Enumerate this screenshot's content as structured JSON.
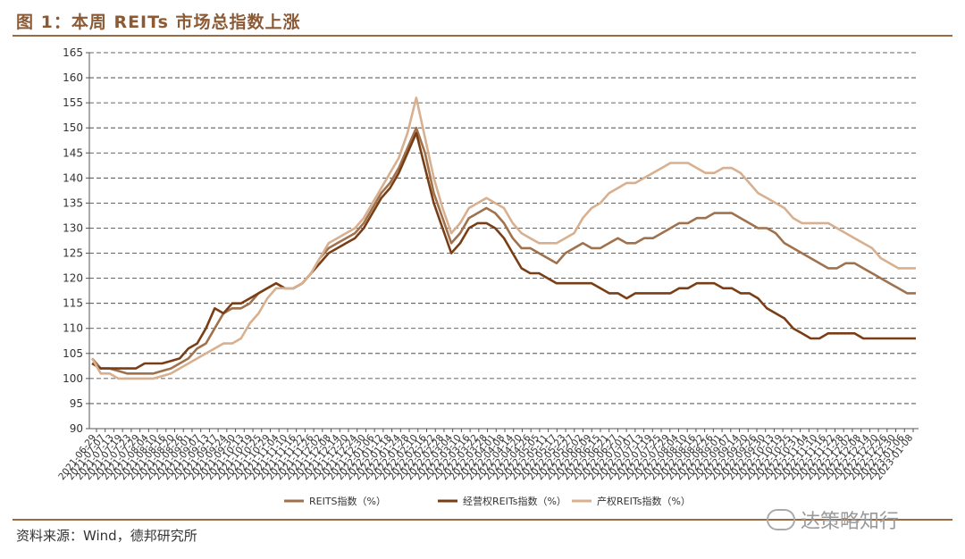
{
  "title": "图 1：本周 REITs 市场总指数上涨",
  "source": "资料来源：Wind，德邦研究所",
  "watermark": "达策略知行",
  "colors": {
    "reits": "#a0714d",
    "jyq": "#7a3e16",
    "cq": "#d8b08f",
    "accent": "#9b6a43"
  },
  "chart_data": {
    "type": "line",
    "ylim": [
      90,
      165
    ],
    "yticks": [
      90,
      95,
      100,
      105,
      110,
      115,
      120,
      125,
      130,
      135,
      140,
      145,
      150,
      155,
      160,
      165
    ],
    "grid": "horizontal-dashed",
    "legend_position": "bottom",
    "x_tick_labels": [
      "2021-06-29",
      "2021-07-07",
      "2021-07-13",
      "2021-07-19",
      "2021-07-23",
      "2021-07-29",
      "2021-08-04",
      "2021-08-10",
      "2021-08-16",
      "2021-08-20",
      "2021-08-26",
      "2021-09-01",
      "2021-09-07",
      "2021-09-13",
      "2021-09-17",
      "2021-09-24",
      "2021-09-30",
      "2021-10-13",
      "2021-10-19",
      "2021-10-25",
      "2021-10-29",
      "2021-11-04",
      "2021-11-10",
      "2021-11-16",
      "2021-11-22",
      "2021-11-26",
      "2021-12-02",
      "2021-12-08",
      "2021-12-14",
      "2021-12-20",
      "2021-12-24",
      "2021-12-30",
      "2022-01-06",
      "2022-01-12",
      "2022-01-18",
      "2022-01-24",
      "2022-01-28",
      "2022-02-10",
      "2022-02-16",
      "2022-02-22",
      "2022-02-28",
      "2022-03-04",
      "2022-03-10",
      "2022-03-16",
      "2022-03-22",
      "2022-03-28",
      "2022-04-01",
      "2022-04-08",
      "2022-04-14",
      "2022-04-20",
      "2022-04-26",
      "2022-05-05",
      "2022-05-11",
      "2022-05-17",
      "2022-05-23",
      "2022-05-27",
      "2022-06-02",
      "2022-06-09",
      "2022-06-15",
      "2022-06-21",
      "2022-06-27",
      "2022-07-01",
      "2022-07-07",
      "2022-07-13",
      "2022-07-19",
      "2022-07-25",
      "2022-07-29",
      "2022-08-04",
      "2022-08-10",
      "2022-08-16",
      "2022-08-22",
      "2022-08-26",
      "2022-09-01",
      "2022-09-07",
      "2022-09-14",
      "2022-09-20",
      "2022-09-26",
      "2022-09-30",
      "2022-10-13",
      "2022-10-19",
      "2022-10-25",
      "2022-10-31",
      "2022-11-04",
      "2022-11-10",
      "2022-11-16",
      "2022-11-22",
      "2022-11-28",
      "2022-12-02",
      "2022-12-08",
      "2022-12-14",
      "2022-12-20",
      "2022-12-26",
      "2022-12-30",
      "2023-01-06",
      "2023-01-08"
    ],
    "series": [
      {
        "name": "REITS指数（%）",
        "color": "#a0714d",
        "values": [
          104,
          102,
          102,
          101.5,
          101,
          101,
          101,
          101,
          101.5,
          102,
          103,
          104,
          106,
          107,
          110,
          113,
          114,
          114,
          115,
          117,
          118,
          119,
          118,
          118,
          119,
          121,
          124,
          126,
          127,
          128,
          129,
          131,
          134,
          137,
          139,
          142,
          146,
          150,
          145,
          137,
          132,
          127,
          129,
          132,
          133,
          134,
          133,
          131,
          128,
          126,
          126,
          125,
          124,
          123,
          125,
          126,
          127,
          126,
          126,
          127,
          128,
          127,
          127,
          128,
          128,
          129,
          130,
          131,
          131,
          132,
          132,
          133,
          133,
          133,
          132,
          131,
          130,
          130,
          129,
          127,
          126,
          125,
          124,
          123,
          122,
          122,
          123,
          123,
          122,
          121,
          120,
          119,
          118,
          117,
          117
        ]
      },
      {
        "name": "经营权REITs指数（%）",
        "color": "#7a3e16",
        "values": [
          103,
          102,
          102,
          102,
          102,
          102,
          103,
          103,
          103,
          103.5,
          104,
          106,
          107,
          110,
          114,
          113,
          115,
          115,
          116,
          117,
          118,
          119,
          118,
          118,
          119,
          121,
          123,
          125,
          126,
          127,
          128,
          130,
          133,
          136,
          138,
          141,
          145,
          149,
          142,
          135,
          130,
          125,
          127,
          130,
          131,
          131,
          130,
          128,
          125,
          122,
          121,
          121,
          120,
          119,
          119,
          119,
          119,
          119,
          118,
          117,
          117,
          116,
          117,
          117,
          117,
          117,
          117,
          118,
          118,
          119,
          119,
          119,
          118,
          118,
          117,
          117,
          116,
          114,
          113,
          112,
          110,
          109,
          108,
          108,
          109,
          109,
          109,
          109,
          108,
          108,
          108,
          108,
          108,
          108,
          108
        ]
      },
      {
        "name": "产权REITs指数（%）",
        "color": "#d8b08f",
        "values": [
          104,
          101,
          101,
          100,
          100,
          100,
          100,
          100,
          100.5,
          101,
          102,
          103,
          104,
          105,
          106,
          107,
          107,
          108,
          111,
          113,
          116,
          118,
          118,
          118,
          119,
          121,
          124,
          127,
          128,
          129,
          130,
          132,
          135,
          138,
          141,
          144,
          149,
          156,
          148,
          140,
          134,
          129,
          131,
          134,
          135,
          136,
          135,
          134,
          131,
          129,
          128,
          127,
          127,
          127,
          128,
          129,
          132,
          134,
          135,
          137,
          138,
          139,
          139,
          140,
          141,
          142,
          143,
          143,
          143,
          142,
          141,
          141,
          142,
          142,
          141,
          139,
          137,
          136,
          135,
          134,
          132,
          131,
          131,
          131,
          131,
          130,
          129,
          128,
          127,
          126,
          124,
          123,
          122,
          122,
          122
        ]
      }
    ]
  }
}
